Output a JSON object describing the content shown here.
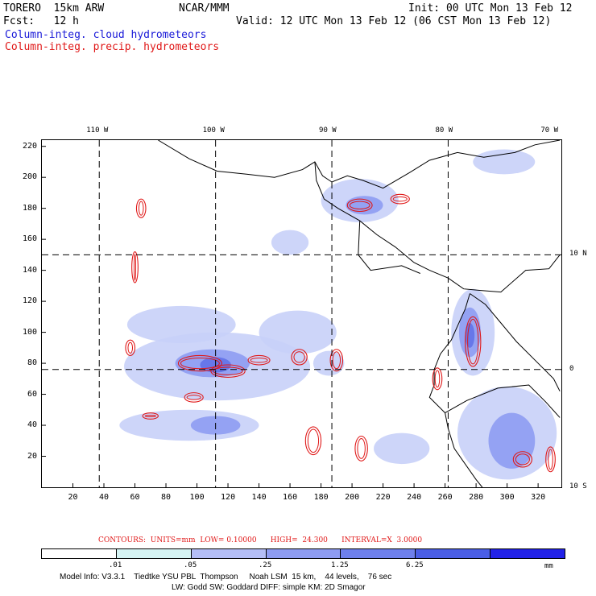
{
  "header": {
    "model": "TORERO  15km ARW",
    "org": "NCAR/MMM",
    "init": "Init: 00 UTC Mon 13 Feb 12",
    "fcst": "Fcst:   12 h",
    "valid": "Valid: 12 UTC Mon 13 Feb 12 (06 CST Mon 13 Feb 12)",
    "field1": "Column-integ. cloud hydrometeors",
    "field2": "Column-integ. precip. hydrometeors"
  },
  "map": {
    "lon_labels": [
      "110 W",
      "100 W",
      "90 W",
      "80 W",
      "70 W"
    ],
    "lat_labels": [
      "10 N",
      "0",
      "10 S"
    ],
    "x_ticks": [
      "20",
      "40",
      "60",
      "80",
      "100",
      "120",
      "140",
      "160",
      "180",
      "200",
      "220",
      "240",
      "260",
      "280",
      "300",
      "320"
    ],
    "y_ticks": [
      "220",
      "200",
      "180",
      "160",
      "140",
      "120",
      "100",
      "80",
      "60",
      "40",
      "20"
    ],
    "x_range": [
      0,
      335
    ],
    "y_range": [
      0,
      224
    ],
    "grid_x": [
      37,
      112,
      187,
      262
    ],
    "grid_y": [
      150,
      76
    ],
    "colors": {
      "light": "#c8d0f8",
      "mid": "#8e9cf2",
      "dark": "#6272e8",
      "contour": "#e01818"
    },
    "cloud_regions": [
      {
        "level": "light",
        "cx": 113,
        "cy": 78,
        "rx": 60,
        "ry": 22
      },
      {
        "level": "light",
        "cx": 90,
        "cy": 105,
        "rx": 35,
        "ry": 12
      },
      {
        "level": "light",
        "cx": 165,
        "cy": 100,
        "rx": 25,
        "ry": 14
      },
      {
        "level": "light",
        "cx": 95,
        "cy": 40,
        "rx": 45,
        "ry": 10
      },
      {
        "level": "light",
        "cx": 205,
        "cy": 185,
        "rx": 25,
        "ry": 14
      },
      {
        "level": "light",
        "cx": 160,
        "cy": 158,
        "rx": 12,
        "ry": 8
      },
      {
        "level": "light",
        "cx": 300,
        "cy": 35,
        "rx": 32,
        "ry": 30
      },
      {
        "level": "light",
        "cx": 278,
        "cy": 100,
        "rx": 14,
        "ry": 28
      },
      {
        "level": "light",
        "cx": 232,
        "cy": 25,
        "rx": 18,
        "ry": 10
      },
      {
        "level": "light",
        "cx": 185,
        "cy": 80,
        "rx": 10,
        "ry": 8
      },
      {
        "level": "light",
        "cx": 298,
        "cy": 210,
        "rx": 20,
        "ry": 8
      },
      {
        "level": "mid",
        "cx": 110,
        "cy": 80,
        "rx": 24,
        "ry": 9
      },
      {
        "level": "mid",
        "cx": 112,
        "cy": 40,
        "rx": 16,
        "ry": 6
      },
      {
        "level": "mid",
        "cx": 208,
        "cy": 182,
        "rx": 12,
        "ry": 6
      },
      {
        "level": "mid",
        "cx": 303,
        "cy": 30,
        "rx": 15,
        "ry": 18
      },
      {
        "level": "mid",
        "cx": 276,
        "cy": 100,
        "rx": 7,
        "ry": 16
      },
      {
        "level": "dark",
        "cx": 112,
        "cy": 79,
        "rx": 10,
        "ry": 5
      },
      {
        "level": "dark",
        "cx": 276,
        "cy": 98,
        "rx": 3,
        "ry": 8
      }
    ],
    "precip_contours": [
      {
        "cx": 102,
        "cy": 80,
        "rx": 14,
        "ry": 5
      },
      {
        "cx": 120,
        "cy": 75,
        "rx": 11,
        "ry": 4
      },
      {
        "cx": 140,
        "cy": 82,
        "rx": 7,
        "ry": 3
      },
      {
        "cx": 166,
        "cy": 84,
        "rx": 5,
        "ry": 5
      },
      {
        "cx": 190,
        "cy": 82,
        "rx": 4,
        "ry": 7
      },
      {
        "cx": 175,
        "cy": 30,
        "rx": 5,
        "ry": 9
      },
      {
        "cx": 206,
        "cy": 25,
        "rx": 4,
        "ry": 8
      },
      {
        "cx": 70,
        "cy": 46,
        "rx": 5,
        "ry": 2
      },
      {
        "cx": 60,
        "cy": 142,
        "rx": 2,
        "ry": 10
      },
      {
        "cx": 64,
        "cy": 180,
        "rx": 3,
        "ry": 6
      },
      {
        "cx": 278,
        "cy": 94,
        "rx": 5,
        "ry": 16
      },
      {
        "cx": 255,
        "cy": 70,
        "rx": 3,
        "ry": 7
      },
      {
        "cx": 205,
        "cy": 182,
        "rx": 8,
        "ry": 4
      },
      {
        "cx": 231,
        "cy": 186,
        "rx": 6,
        "ry": 3
      },
      {
        "cx": 98,
        "cy": 58,
        "rx": 6,
        "ry": 3
      },
      {
        "cx": 310,
        "cy": 18,
        "rx": 6,
        "ry": 5
      },
      {
        "cx": 328,
        "cy": 18,
        "rx": 3,
        "ry": 8
      },
      {
        "cx": 57,
        "cy": 90,
        "rx": 3,
        "ry": 5
      }
    ],
    "coastlines": [
      [
        [
          75,
          224
        ],
        [
          95,
          212
        ],
        [
          113,
          204
        ],
        [
          132,
          202
        ],
        [
          150,
          200
        ],
        [
          168,
          205
        ],
        [
          176,
          210
        ],
        [
          181,
          201
        ],
        [
          187,
          197
        ],
        [
          197,
          201
        ],
        [
          207,
          198
        ],
        [
          220,
          193
        ],
        [
          237,
          203
        ],
        [
          250,
          211
        ],
        [
          268,
          216
        ],
        [
          285,
          213
        ],
        [
          305,
          216
        ],
        [
          318,
          221
        ],
        [
          334,
          224
        ]
      ],
      [
        [
          176,
          210
        ],
        [
          177,
          198
        ],
        [
          182,
          186
        ],
        [
          191,
          180
        ],
        [
          205,
          172
        ],
        [
          216,
          163
        ],
        [
          228,
          155
        ],
        [
          240,
          145
        ],
        [
          250,
          140
        ],
        [
          262,
          135
        ],
        [
          272,
          128
        ],
        [
          283,
          127
        ],
        [
          296,
          126
        ],
        [
          312,
          140
        ],
        [
          327,
          141
        ],
        [
          334,
          150
        ]
      ],
      [
        [
          276,
          125
        ],
        [
          273,
          115
        ],
        [
          268,
          104
        ],
        [
          264,
          95
        ],
        [
          257,
          86
        ],
        [
          253,
          76
        ],
        [
          253,
          66
        ],
        [
          250,
          58
        ],
        [
          260,
          48
        ],
        [
          262,
          38
        ],
        [
          266,
          25
        ],
        [
          280,
          5
        ],
        [
          284,
          0
        ]
      ],
      [
        [
          276,
          125
        ],
        [
          286,
          118
        ],
        [
          296,
          106
        ],
        [
          306,
          94
        ],
        [
          318,
          82
        ],
        [
          330,
          70
        ],
        [
          334,
          62
        ]
      ],
      [
        [
          260,
          48
        ],
        [
          274,
          56
        ],
        [
          294,
          64
        ],
        [
          314,
          66
        ],
        [
          325,
          55
        ],
        [
          334,
          45
        ]
      ],
      [
        [
          205,
          172
        ],
        [
          204,
          150
        ],
        [
          212,
          140
        ],
        [
          232,
          143
        ],
        [
          244,
          138
        ]
      ]
    ]
  },
  "footer": {
    "contour_label": "CONTOURS:  UNITS=mm  LOW= 0.10000      HIGH=  24.300      INTERVAL=X  3.0000",
    "colorbar_labels": [
      ".01",
      ".05",
      ".25",
      "1.25",
      "6.25"
    ],
    "colorbar_colors": [
      "#ffffff",
      "#d6f4f4",
      "#b4bef6",
      "#8e9cf2",
      "#6e80ec",
      "#4a5ee6",
      "#2222e8"
    ],
    "units": "mm",
    "model_info_1": "Model Info: V3.3.1    Tiedtke YSU PBL  Thompson     Noah LSM  15 km,    44 levels,    76 sec",
    "model_info_2": "LW: Godd SW: Goddard DIFF: simple KM: 2D Smagor"
  }
}
